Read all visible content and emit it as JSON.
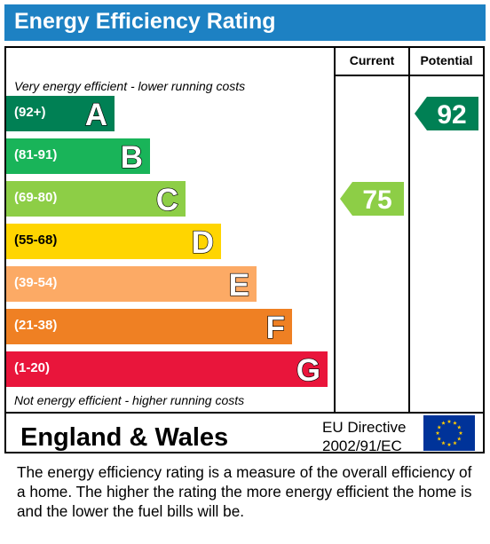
{
  "title": "Energy Efficiency Rating",
  "columns": {
    "current": "Current",
    "potential": "Potential"
  },
  "notes": {
    "top": "Very energy efficient - lower running costs",
    "bottom": "Not energy efficient - higher running costs"
  },
  "chart_data": {
    "type": "bar",
    "categories": [
      "A",
      "B",
      "C",
      "D",
      "E",
      "F",
      "G"
    ],
    "ranges": [
      "(92+)",
      "(81-91)",
      "(69-80)",
      "(55-68)",
      "(39-54)",
      "(21-38)",
      "(1-20)"
    ],
    "colors": [
      "#008054",
      "#19b459",
      "#8dce46",
      "#ffd500",
      "#fcaa65",
      "#ef8023",
      "#e9153b"
    ],
    "current": {
      "value": 75,
      "band": "C",
      "color": "#8dce46"
    },
    "potential": {
      "value": 92,
      "band": "A",
      "color": "#008054"
    }
  },
  "footer": {
    "region": "England & Wales",
    "directive_line1": "EU Directive",
    "directive_line2": "2002/91/EC"
  },
  "description": "The energy efficiency rating is a measure of the overall efficiency of a home.  The higher the rating the more energy efficient the home is and the lower the fuel bills will be."
}
